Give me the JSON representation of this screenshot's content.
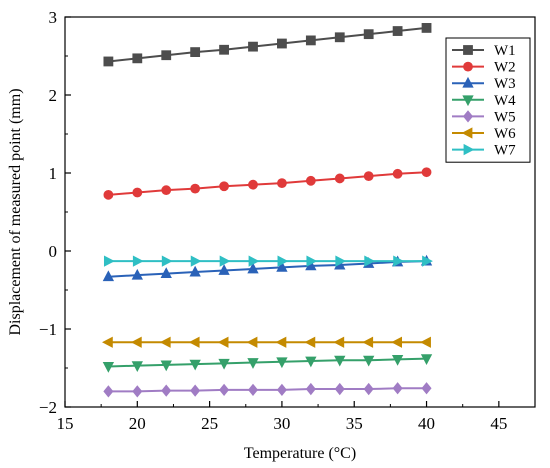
{
  "chart_data": {
    "type": "line",
    "xlabel": "Temperature (°C)",
    "ylabel": "Displacement of measured point (mm)",
    "xlim": [
      15,
      47.5
    ],
    "ylim": [
      -2,
      3
    ],
    "xticks": [
      "15",
      "20",
      "25",
      "30",
      "35",
      "40",
      "45"
    ],
    "yticks": [
      "−2",
      "−1",
      "0",
      "1",
      "2",
      "3"
    ],
    "grid": false,
    "legend_position": "top-right",
    "x": [
      18,
      20,
      22,
      24,
      26,
      28,
      30,
      32,
      34,
      36,
      38,
      40
    ],
    "series": [
      {
        "name": "W1",
        "color": "#4d4d4d",
        "marker": "square",
        "values": [
          2.43,
          2.47,
          2.51,
          2.55,
          2.58,
          2.62,
          2.66,
          2.7,
          2.74,
          2.78,
          2.82,
          2.86
        ]
      },
      {
        "name": "W2",
        "color": "#e03a3a",
        "marker": "circle",
        "values": [
          0.72,
          0.75,
          0.78,
          0.8,
          0.83,
          0.85,
          0.87,
          0.9,
          0.93,
          0.96,
          0.99,
          1.01
        ]
      },
      {
        "name": "W3",
        "color": "#2a62b8",
        "marker": "triangle-up",
        "values": [
          -0.33,
          -0.31,
          -0.29,
          -0.27,
          -0.25,
          -0.23,
          -0.21,
          -0.19,
          -0.18,
          -0.16,
          -0.14,
          -0.13
        ]
      },
      {
        "name": "W4",
        "color": "#35a06a",
        "marker": "triangle-down",
        "values": [
          -1.48,
          -1.47,
          -1.46,
          -1.45,
          -1.44,
          -1.43,
          -1.42,
          -1.41,
          -1.4,
          -1.4,
          -1.39,
          -1.38
        ]
      },
      {
        "name": "W5",
        "color": "#a07cc4",
        "marker": "diamond",
        "values": [
          -1.8,
          -1.8,
          -1.79,
          -1.79,
          -1.78,
          -1.78,
          -1.78,
          -1.77,
          -1.77,
          -1.77,
          -1.76,
          -1.76
        ]
      },
      {
        "name": "W6",
        "color": "#c48a00",
        "marker": "triangle-left",
        "values": [
          -1.17,
          -1.17,
          -1.17,
          -1.17,
          -1.17,
          -1.17,
          -1.17,
          -1.17,
          -1.17,
          -1.17,
          -1.17,
          -1.17
        ]
      },
      {
        "name": "W7",
        "color": "#2fbfc4",
        "marker": "triangle-right",
        "values": [
          -0.13,
          -0.13,
          -0.13,
          -0.13,
          -0.13,
          -0.13,
          -0.13,
          -0.13,
          -0.13,
          -0.13,
          -0.13,
          -0.13
        ]
      }
    ]
  }
}
